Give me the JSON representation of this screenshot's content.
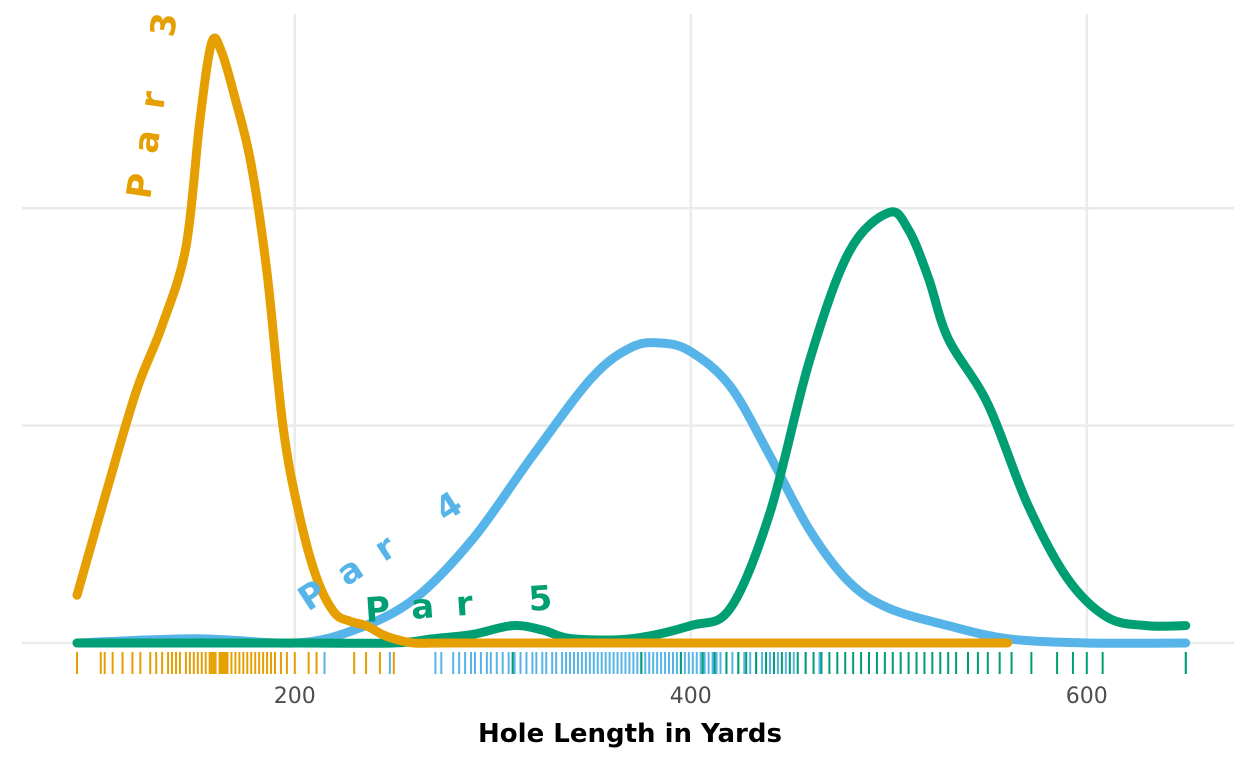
{
  "chart_data": {
    "type": "line",
    "subtype": "density",
    "xlabel": "Hole Length in Yards",
    "ylabel": "",
    "xlim": [
      85,
      650
    ],
    "ylim": [
      0,
      0.0138
    ],
    "x_ticks": [
      200,
      400,
      600
    ],
    "x_tick_labels": [
      "200",
      "400",
      "600"
    ],
    "y_gridlines": [
      0,
      0.005,
      0.01
    ],
    "grid": true,
    "legend": "none",
    "series": [
      {
        "name": "Par 3",
        "color": "#E69F00",
        "x": [
          90,
          105,
          120,
          133,
          145,
          152,
          158,
          163,
          170,
          178,
          186,
          194,
          202,
          211,
          220,
          228,
          236,
          244,
          250,
          260,
          275,
          300,
          400,
          500,
          560
        ],
        "y": [
          0.0011,
          0.0035,
          0.0058,
          0.0073,
          0.0091,
          0.012,
          0.0138,
          0.0136,
          0.0125,
          0.011,
          0.0085,
          0.005,
          0.003,
          0.0015,
          0.0007,
          0.0005,
          0.0004,
          0.0002,
          0.0001,
          0.0,
          0.0,
          0.0,
          0.0,
          0.0,
          0.0
        ],
        "rug": [
          90,
          102,
          104,
          108,
          113,
          118,
          122,
          127,
          130,
          133,
          136,
          138,
          140,
          142,
          145,
          147,
          149,
          151,
          153,
          155,
          157,
          158,
          159,
          160,
          162,
          163,
          164,
          165,
          166,
          168,
          170,
          172,
          174,
          176,
          178,
          180,
          182,
          184,
          186,
          188,
          190,
          193,
          196,
          200,
          207,
          211,
          215,
          230,
          236,
          243,
          250
        ]
      },
      {
        "name": "Par 4",
        "color": "#56B4E9",
        "x": [
          90,
          150,
          200,
          230,
          260,
          290,
          320,
          350,
          370,
          385,
          400,
          420,
          440,
          460,
          480,
          500,
          530,
          560,
          600,
          650
        ],
        "y": [
          0.0,
          0.0001,
          0.0,
          0.0003,
          0.001,
          0.0024,
          0.0043,
          0.0061,
          0.0068,
          0.0069,
          0.0067,
          0.0059,
          0.0043,
          0.0026,
          0.0014,
          0.0008,
          0.0004,
          0.0001,
          0.0,
          0.0
        ],
        "rug": [
          215,
          248,
          271,
          274,
          280,
          283,
          286,
          289,
          291,
          294,
          297,
          299,
          302,
          305,
          308,
          311,
          314,
          317,
          320,
          322,
          325,
          327,
          330,
          332,
          335,
          337,
          339,
          341,
          343,
          345,
          347,
          349,
          351,
          353,
          355,
          357,
          359,
          361,
          363,
          365,
          367,
          369,
          371,
          373,
          375,
          377,
          379,
          381,
          383,
          385,
          387,
          389,
          391,
          393,
          395,
          397,
          399,
          401,
          403,
          405,
          407,
          409,
          411,
          413,
          415,
          418,
          421,
          424,
          427,
          430,
          433,
          436,
          440,
          444,
          448,
          452,
          458,
          465,
          650
        ]
      },
      {
        "name": "Par 5",
        "color": "#009E73",
        "x": [
          90,
          200,
          250,
          270,
          290,
          310,
          325,
          340,
          370,
          400,
          420,
          440,
          460,
          480,
          500,
          510,
          520,
          530,
          550,
          570,
          590,
          610,
          630,
          650
        ],
        "y": [
          0.0,
          0.0,
          0.0,
          0.0001,
          0.0002,
          0.0004,
          0.0003,
          0.0001,
          0.0001,
          0.0004,
          0.0008,
          0.003,
          0.0065,
          0.009,
          0.0099,
          0.0095,
          0.0084,
          0.007,
          0.0055,
          0.0032,
          0.0015,
          0.0006,
          0.0004,
          0.0004
        ],
        "rug": [
          310,
          375,
          395,
          406,
          412,
          418,
          424,
          428,
          433,
          438,
          442,
          446,
          450,
          454,
          458,
          462,
          466,
          470,
          474,
          478,
          482,
          486,
          490,
          494,
          498,
          502,
          506,
          510,
          514,
          518,
          522,
          526,
          530,
          534,
          540,
          545,
          550,
          556,
          562,
          572,
          585,
          593,
          600,
          608,
          650
        ]
      }
    ],
    "curve_labels": [
      {
        "series": "Par 3",
        "text": "Par 3",
        "path": "along curve, rising left flank"
      },
      {
        "series": "Par 4",
        "text": "Par 4",
        "path": "along curve, rising left flank"
      },
      {
        "series": "Par 5",
        "text": "Par 5",
        "path": "along curve, near baseline"
      }
    ]
  }
}
